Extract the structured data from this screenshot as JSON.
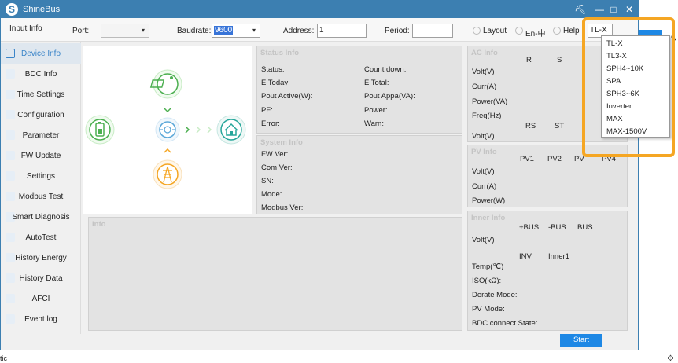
{
  "window": {
    "title": "ShineBus"
  },
  "titlebar": {
    "buttons": [
      "shirt-icon",
      "minimize-icon",
      "maximize-icon",
      "close-icon"
    ],
    "glyphs": [
      "⛏",
      "—",
      "□",
      "✕"
    ]
  },
  "toolbar": {
    "input_info": "Input Info",
    "port_label": "Port:",
    "port_value": "",
    "baudrate_label": "Baudrate:",
    "baudrate_value": "9600",
    "address_label": "Address:",
    "address_value": "1",
    "period_label": "Period:",
    "period_value": "",
    "layout_label": "Layout",
    "lang_label": "En-中",
    "help_label": "Help",
    "model_value": "TL-X"
  },
  "sidebar": {
    "items": [
      {
        "label": "Device Info",
        "active": true
      },
      {
        "label": "BDC Info"
      },
      {
        "label": "Time Settings"
      },
      {
        "label": "Configuration"
      },
      {
        "label": "Parameter"
      },
      {
        "label": "FW Update"
      },
      {
        "label": "Settings"
      },
      {
        "label": "Modbus Test"
      },
      {
        "label": "Smart Diagnosis"
      },
      {
        "label": "AutoTest"
      },
      {
        "label": "History Energy"
      },
      {
        "label": "History Data"
      },
      {
        "label": "AFCI"
      },
      {
        "label": "Event log"
      }
    ]
  },
  "status_info": {
    "title": "Status Info",
    "left": [
      "Status:",
      "E Today:",
      "Pout Active(W):",
      "PF:",
      "Error:"
    ],
    "right": [
      "Count down:",
      "E Total:",
      "Pout Appa(VA):",
      "Power:",
      "Warn:"
    ]
  },
  "system_info": {
    "title": "System Info",
    "labels": [
      "FW Ver:",
      "Com Ver:",
      "SN:",
      "Mode:",
      "Modbus Ver:"
    ]
  },
  "info": {
    "title": "Info"
  },
  "ac_info": {
    "title": "AC Info",
    "cols": [
      "R",
      "S"
    ],
    "rows": [
      "Volt(V)",
      "Curr(A)",
      "Power(VA)",
      "Freq(Hz)"
    ],
    "cols2": [
      "RS",
      "ST"
    ],
    "rows2": [
      "Volt(V)"
    ]
  },
  "pv_info": {
    "title": "PV Info",
    "cols": [
      "PV1",
      "PV2",
      "PV",
      "PV4"
    ],
    "rows": [
      "Volt(V)",
      "Curr(A)",
      "Power(W)"
    ]
  },
  "inner_info": {
    "title": "Inner Info",
    "cols": [
      "+BUS",
      "-BUS",
      "BUS"
    ],
    "row1": "Volt(V)",
    "cols2": [
      "INV",
      "Inner1"
    ],
    "rows2": [
      "Temp(℃)",
      "ISO(kΩ):",
      "Derate Mode:",
      "PV Mode:",
      "BDC connect State:"
    ]
  },
  "start_label": "Start",
  "dropdown": {
    "options": [
      "TL-X",
      "TL3-X",
      "SPH4~10K",
      "SPA",
      "SPH3~6K",
      "Inverter",
      "MAX",
      "MAX-1500V"
    ]
  },
  "bottom": {
    "partial_text": "tic"
  },
  "colors": {
    "accent": "#3c7fb1",
    "highlight": "#f5a623",
    "flow_green": "#4caf50",
    "flow_orange": "#f5a623",
    "flow_blue": "#5aa7d8"
  }
}
